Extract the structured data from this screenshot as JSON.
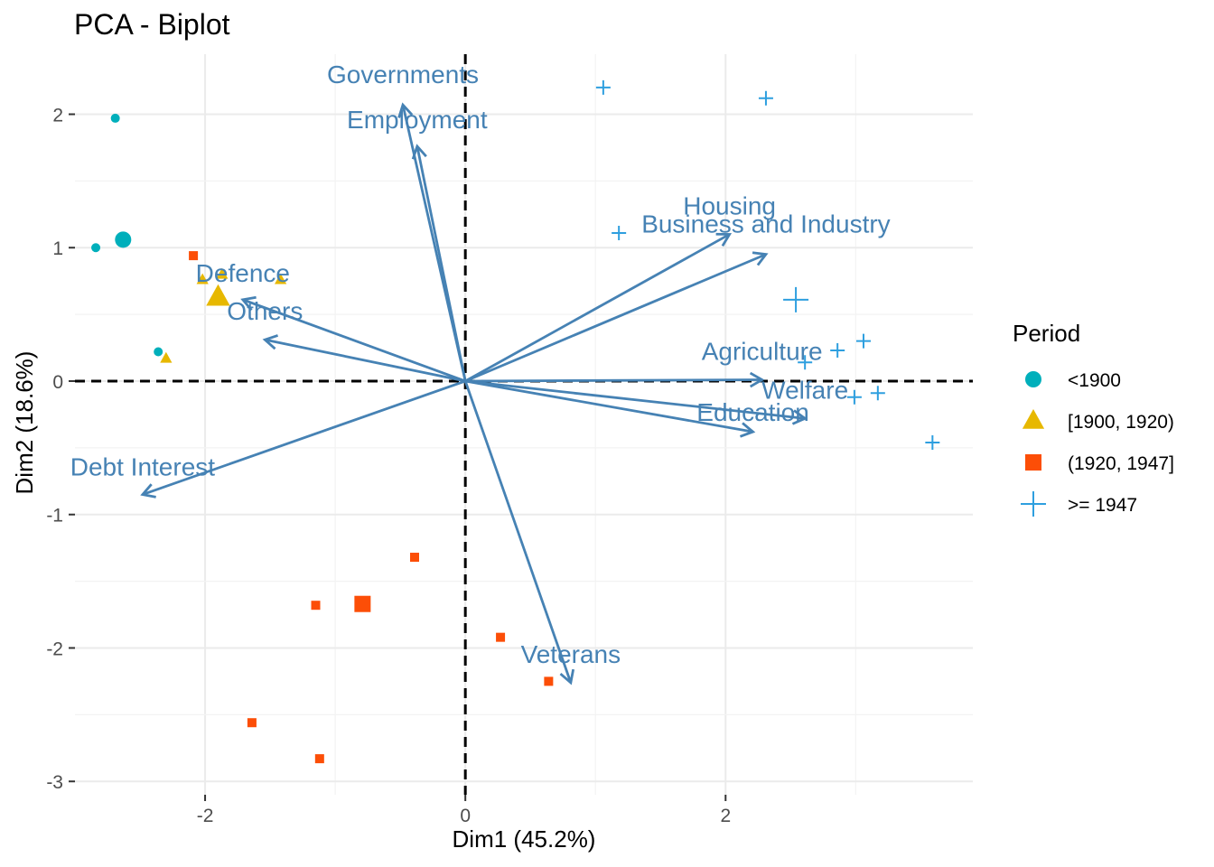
{
  "chart_data": {
    "type": "scatter",
    "subtype": "pca-biplot",
    "title": "PCA - Biplot",
    "xlabel": "Dim1 (45.2%)",
    "ylabel": "Dim2 (18.6%)",
    "xlim": [
      -3.0,
      3.9
    ],
    "ylim": [
      -3.1,
      2.45
    ],
    "xticks": [
      -2,
      0,
      2
    ],
    "yticks": [
      -3,
      -2,
      -1,
      0,
      1,
      2
    ],
    "grid": true,
    "reference_lines": "dashed lines at x=0 and y=0",
    "legend": {
      "title": "Period",
      "position": "right",
      "entries": [
        {
          "label": "<1900",
          "shape": "circle",
          "color": "#00AFBB"
        },
        {
          "label": "[1900, 1920)",
          "shape": "triangle",
          "color": "#E7B800"
        },
        {
          "label": "(1920, 1947]",
          "shape": "square",
          "color": "#FC4E07"
        },
        {
          "label": ">= 1947",
          "shape": "plus",
          "color": "#2E9FDF"
        }
      ]
    },
    "arrow_color": "#4682B4",
    "variables": [
      {
        "name": "Governments",
        "x": -0.48,
        "y": 2.07
      },
      {
        "name": "Employment",
        "x": -0.37,
        "y": 1.76
      },
      {
        "name": "Housing",
        "x": 2.03,
        "y": 1.1
      },
      {
        "name": "Business and Industry",
        "x": 2.31,
        "y": 0.95
      },
      {
        "name": "Defence",
        "x": -1.71,
        "y": 0.61
      },
      {
        "name": "Others",
        "x": -1.54,
        "y": 0.31
      },
      {
        "name": "Agriculture",
        "x": 2.28,
        "y": 0.01
      },
      {
        "name": "Welfare",
        "x": 2.61,
        "y": -0.28
      },
      {
        "name": "Education",
        "x": 2.21,
        "y": -0.38
      },
      {
        "name": "Debt Interest",
        "x": -2.48,
        "y": -0.85
      },
      {
        "name": "Veterans",
        "x": 0.81,
        "y": -2.26
      }
    ],
    "series": [
      {
        "name": "<1900",
        "points": [
          [
            -2.69,
            1.97
          ],
          [
            -2.84,
            1.0
          ],
          [
            -2.36,
            0.22
          ]
        ],
        "mean": [
          -2.63,
          1.06
        ]
      },
      {
        "name": "[1900, 1920)",
        "points": [
          [
            -1.87,
            0.8
          ],
          [
            -2.02,
            0.76
          ],
          [
            -1.42,
            0.76
          ],
          [
            -2.3,
            0.17
          ]
        ],
        "mean": [
          -1.9,
          0.63
        ]
      },
      {
        "name": "(1920, 1947]",
        "points": [
          [
            -2.09,
            0.94
          ],
          [
            -0.39,
            -1.32
          ],
          [
            -1.15,
            -1.68
          ],
          [
            0.27,
            -1.92
          ],
          [
            0.64,
            -2.25
          ],
          [
            -1.64,
            -2.56
          ],
          [
            -1.12,
            -2.83
          ]
        ],
        "mean": [
          -0.79,
          -1.67
        ]
      },
      {
        "name": ">= 1947",
        "points": [
          [
            1.06,
            2.2
          ],
          [
            2.31,
            2.12
          ],
          [
            1.18,
            1.11
          ],
          [
            2.61,
            0.14
          ],
          [
            2.86,
            0.23
          ],
          [
            3.06,
            0.3
          ],
          [
            2.99,
            -0.12
          ],
          [
            3.17,
            -0.09
          ],
          [
            3.59,
            -0.46
          ]
        ],
        "mean": [
          2.54,
          0.61
        ]
      }
    ]
  }
}
